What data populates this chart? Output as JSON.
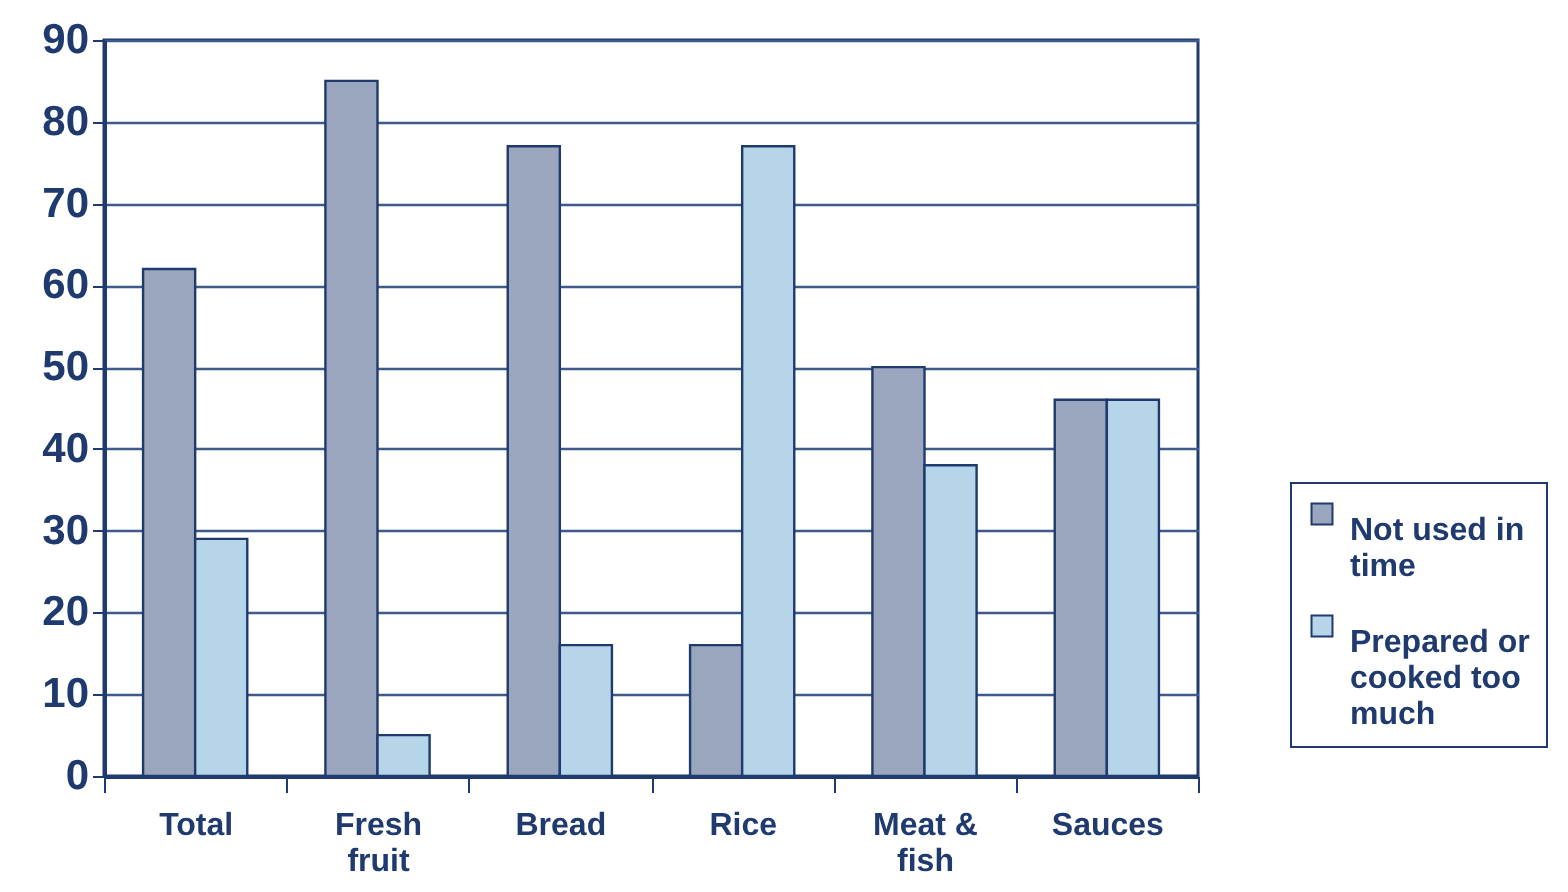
{
  "chart_data": {
    "type": "bar",
    "categories": [
      "Total",
      "Fresh fruit",
      "Bread",
      "Rice",
      "Meat & fish",
      "Sauces"
    ],
    "series": [
      {
        "name": "Not used in time",
        "color": "#9aa6bd",
        "values": [
          62,
          85,
          77,
          16,
          50,
          46
        ]
      },
      {
        "name": "Prepared or cooked too much",
        "color": "#b7d5e8",
        "values": [
          29,
          5,
          16,
          77,
          38,
          46
        ]
      }
    ],
    "ylim": [
      0,
      90
    ],
    "yticks": [
      0,
      10,
      20,
      30,
      40,
      50,
      60,
      70,
      80,
      90
    ],
    "grid": "y",
    "legend": "right"
  }
}
